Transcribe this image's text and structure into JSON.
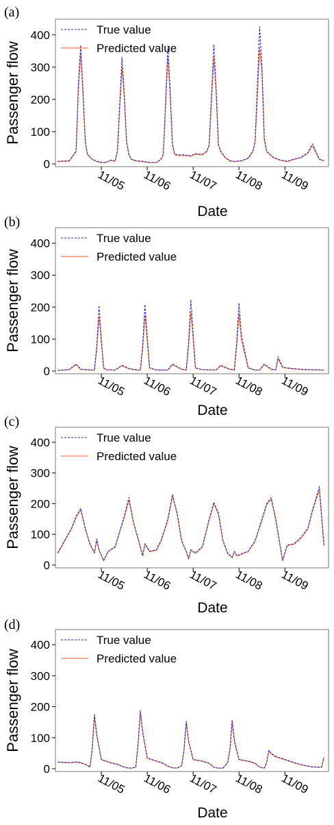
{
  "colors": {
    "true": "#2222dd",
    "predicted": "#f07850"
  },
  "chart_data": [
    {
      "panel": "(a)",
      "type": "line",
      "xlabel": "Date",
      "ylabel": "Passenger flow",
      "ylim": [
        0,
        440
      ],
      "yticks": [
        0,
        100,
        200,
        300,
        400
      ],
      "grid": false,
      "legend_position": "top-left",
      "xticks": [
        {
          "x": 1.0,
          "label": "11/05"
        },
        {
          "x": 2.0,
          "label": "11/06"
        },
        {
          "x": 3.0,
          "label": "11/07"
        },
        {
          "x": 4.0,
          "label": "11/08"
        },
        {
          "x": 5.0,
          "label": "11/09"
        }
      ],
      "xlim": [
        0,
        5.95
      ],
      "series": [
        {
          "name": "True value",
          "style": "dashed",
          "x": [
            0.05,
            0.3,
            0.45,
            0.5,
            0.55,
            0.6,
            0.65,
            0.7,
            0.8,
            0.9,
            1.0,
            1.1,
            1.2,
            1.3,
            1.35,
            1.45,
            1.5,
            1.55,
            1.6,
            1.65,
            1.75,
            1.9,
            2.05,
            2.2,
            2.3,
            2.35,
            2.45,
            2.5,
            2.55,
            2.6,
            2.7,
            2.8,
            2.95,
            3.05,
            3.2,
            3.3,
            3.35,
            3.45,
            3.5,
            3.55,
            3.6,
            3.7,
            3.8,
            3.9,
            4.05,
            4.2,
            4.3,
            4.35,
            4.45,
            4.5,
            4.55,
            4.6,
            4.75,
            4.9,
            5.05,
            5.2,
            5.35,
            5.5,
            5.6,
            5.75,
            5.85
          ],
          "y": [
            8,
            10,
            40,
            250,
            368,
            230,
            70,
            30,
            15,
            8,
            5,
            4,
            12,
            8,
            40,
            330,
            220,
            70,
            30,
            15,
            10,
            8,
            5,
            4,
            15,
            30,
            365,
            230,
            60,
            30,
            28,
            28,
            25,
            32,
            30,
            40,
            60,
            370,
            240,
            60,
            40,
            20,
            10,
            8,
            10,
            18,
            40,
            70,
            425,
            300,
            80,
            40,
            20,
            12,
            8,
            15,
            20,
            35,
            62,
            15,
            10
          ]
        },
        {
          "name": "Predicted value",
          "style": "solid",
          "x": [
            0.05,
            0.3,
            0.45,
            0.5,
            0.55,
            0.6,
            0.65,
            0.7,
            0.8,
            0.9,
            1.0,
            1.1,
            1.2,
            1.3,
            1.35,
            1.45,
            1.5,
            1.55,
            1.6,
            1.65,
            1.75,
            1.9,
            2.05,
            2.2,
            2.3,
            2.35,
            2.45,
            2.5,
            2.55,
            2.6,
            2.7,
            2.8,
            2.95,
            3.05,
            3.2,
            3.3,
            3.35,
            3.45,
            3.5,
            3.55,
            3.6,
            3.7,
            3.8,
            3.9,
            4.05,
            4.2,
            4.3,
            4.35,
            4.45,
            4.5,
            4.55,
            4.6,
            4.75,
            4.9,
            5.05,
            5.2,
            5.35,
            5.5,
            5.6,
            5.75,
            5.85
          ],
          "y": [
            7,
            9,
            38,
            230,
            345,
            215,
            68,
            28,
            14,
            7,
            4,
            4,
            11,
            8,
            38,
            300,
            205,
            68,
            28,
            14,
            9,
            7,
            4,
            4,
            14,
            28,
            335,
            215,
            58,
            28,
            26,
            26,
            24,
            30,
            28,
            38,
            58,
            330,
            225,
            58,
            38,
            19,
            9,
            7,
            9,
            17,
            38,
            66,
            360,
            280,
            76,
            38,
            19,
            11,
            7,
            14,
            19,
            33,
            56,
            14,
            9
          ]
        }
      ]
    },
    {
      "panel": "(b)",
      "type": "line",
      "xlabel": "Date",
      "ylabel": "Passenger flow",
      "ylim": [
        0,
        440
      ],
      "yticks": [
        0,
        100,
        200,
        300,
        400
      ],
      "grid": false,
      "legend_position": "top-left",
      "xticks": [
        {
          "x": 1.0,
          "label": "11/05"
        },
        {
          "x": 2.0,
          "label": "11/06"
        },
        {
          "x": 3.0,
          "label": "11/07"
        },
        {
          "x": 4.0,
          "label": "11/08"
        },
        {
          "x": 5.0,
          "label": "11/09"
        }
      ],
      "xlim": [
        0,
        5.95
      ],
      "series": [
        {
          "name": "True value",
          "style": "dashed",
          "x": [
            0.05,
            0.3,
            0.45,
            0.55,
            0.7,
            0.85,
            0.9,
            0.95,
            1.0,
            1.05,
            1.1,
            1.3,
            1.45,
            1.6,
            1.75,
            1.85,
            1.9,
            1.95,
            2.0,
            2.05,
            2.2,
            2.45,
            2.55,
            2.75,
            2.85,
            2.9,
            2.95,
            3.0,
            3.05,
            3.2,
            3.5,
            3.6,
            3.8,
            3.9,
            3.95,
            4.0,
            4.05,
            4.2,
            4.35,
            4.45,
            4.55,
            4.7,
            4.8,
            4.85,
            4.95,
            5.15,
            5.4,
            5.85
          ],
          "y": [
            2,
            5,
            22,
            6,
            4,
            3,
            80,
            205,
            100,
            10,
            4,
            3,
            18,
            8,
            4,
            3,
            80,
            208,
            110,
            10,
            3,
            3,
            22,
            6,
            3,
            90,
            223,
            120,
            10,
            4,
            3,
            18,
            6,
            4,
            95,
            213,
            115,
            10,
            3,
            3,
            22,
            6,
            4,
            45,
            12,
            8,
            5,
            3
          ]
        },
        {
          "name": "Predicted value",
          "style": "solid",
          "x": [
            0.05,
            0.3,
            0.45,
            0.55,
            0.7,
            0.85,
            0.9,
            0.95,
            1.0,
            1.05,
            1.1,
            1.3,
            1.45,
            1.6,
            1.75,
            1.85,
            1.9,
            1.95,
            2.0,
            2.05,
            2.2,
            2.45,
            2.55,
            2.75,
            2.85,
            2.9,
            2.95,
            3.0,
            3.05,
            3.2,
            3.5,
            3.6,
            3.8,
            3.9,
            3.95,
            4.0,
            4.05,
            4.2,
            4.35,
            4.45,
            4.55,
            4.7,
            4.8,
            4.85,
            4.95,
            5.15,
            5.4,
            5.85
          ],
          "y": [
            2,
            4,
            20,
            5,
            3,
            3,
            70,
            170,
            90,
            9,
            4,
            3,
            16,
            7,
            3,
            3,
            70,
            175,
            95,
            9,
            3,
            3,
            20,
            5,
            3,
            78,
            185,
            100,
            9,
            4,
            3,
            16,
            5,
            3,
            82,
            180,
            98,
            9,
            3,
            3,
            20,
            5,
            3,
            38,
            11,
            7,
            4,
            3
          ]
        }
      ]
    },
    {
      "panel": "(c)",
      "type": "line",
      "xlabel": "Date",
      "ylabel": "Passenger flow",
      "ylim": [
        0,
        440
      ],
      "yticks": [
        0,
        100,
        200,
        300,
        400
      ],
      "grid": false,
      "legend_position": "top-left",
      "xticks": [
        {
          "x": 1.0,
          "label": "11/05"
        },
        {
          "x": 2.0,
          "label": "11/06"
        },
        {
          "x": 3.0,
          "label": "11/07"
        },
        {
          "x": 4.0,
          "label": "11/08"
        },
        {
          "x": 5.0,
          "label": "11/09"
        }
      ],
      "xlim": [
        0,
        5.95
      ],
      "series": [
        {
          "name": "True value",
          "style": "dashed",
          "x": [
            0.05,
            0.2,
            0.35,
            0.45,
            0.55,
            0.65,
            0.75,
            0.85,
            0.9,
            0.95,
            1.05,
            1.15,
            1.3,
            1.4,
            1.5,
            1.6,
            1.7,
            1.85,
            1.9,
            1.95,
            2.05,
            2.2,
            2.3,
            2.45,
            2.55,
            2.65,
            2.75,
            2.85,
            2.9,
            2.95,
            3.05,
            3.2,
            3.35,
            3.45,
            3.55,
            3.65,
            3.75,
            3.85,
            3.9,
            3.95,
            4.1,
            4.2,
            4.35,
            4.5,
            4.6,
            4.7,
            4.8,
            4.9,
            4.95,
            5.05,
            5.2,
            5.35,
            5.5,
            5.6,
            5.75,
            5.85
          ],
          "y": [
            40,
            80,
            120,
            160,
            185,
            120,
            70,
            40,
            85,
            50,
            15,
            45,
            60,
            110,
            160,
            220,
            140,
            60,
            30,
            70,
            45,
            50,
            80,
            150,
            230,
            170,
            80,
            45,
            20,
            50,
            40,
            60,
            150,
            205,
            170,
            80,
            40,
            25,
            45,
            30,
            40,
            45,
            80,
            150,
            200,
            220,
            150,
            60,
            15,
            65,
            70,
            90,
            120,
            180,
            255,
            65
          ]
        },
        {
          "name": "Predicted value",
          "style": "solid",
          "x": [
            0.05,
            0.2,
            0.35,
            0.45,
            0.55,
            0.65,
            0.75,
            0.85,
            0.9,
            0.95,
            1.05,
            1.15,
            1.3,
            1.4,
            1.5,
            1.6,
            1.7,
            1.85,
            1.9,
            1.95,
            2.05,
            2.2,
            2.3,
            2.45,
            2.55,
            2.65,
            2.75,
            2.85,
            2.9,
            2.95,
            3.05,
            3.2,
            3.35,
            3.45,
            3.55,
            3.65,
            3.75,
            3.85,
            3.9,
            3.95,
            4.1,
            4.2,
            4.35,
            4.5,
            4.6,
            4.7,
            4.8,
            4.9,
            4.95,
            5.05,
            5.2,
            5.35,
            5.5,
            5.6,
            5.75,
            5.85
          ],
          "y": [
            38,
            78,
            118,
            155,
            180,
            118,
            68,
            40,
            82,
            48,
            14,
            44,
            58,
            108,
            155,
            212,
            138,
            58,
            30,
            68,
            44,
            48,
            78,
            146,
            225,
            168,
            78,
            44,
            20,
            48,
            38,
            58,
            146,
            200,
            166,
            78,
            38,
            24,
            44,
            30,
            38,
            44,
            78,
            146,
            196,
            215,
            148,
            58,
            15,
            63,
            68,
            88,
            118,
            176,
            245,
            64
          ]
        }
      ]
    },
    {
      "panel": "(d)",
      "type": "line",
      "xlabel": "Date",
      "ylabel": "Passenger flow",
      "ylim": [
        0,
        440
      ],
      "yticks": [
        0,
        100,
        200,
        300,
        400
      ],
      "grid": false,
      "legend_position": "top-left",
      "xticks": [
        {
          "x": 1.0,
          "label": "11/05"
        },
        {
          "x": 2.0,
          "label": "11/06"
        },
        {
          "x": 3.0,
          "label": "11/07"
        },
        {
          "x": 4.0,
          "label": "11/08"
        },
        {
          "x": 5.0,
          "label": "11/09"
        }
      ],
      "xlim": [
        0,
        5.95
      ],
      "series": [
        {
          "name": "True value",
          "style": "dashed",
          "x": [
            0.05,
            0.3,
            0.45,
            0.55,
            0.65,
            0.75,
            0.8,
            0.85,
            0.9,
            1.0,
            1.2,
            1.35,
            1.45,
            1.55,
            1.65,
            1.75,
            1.8,
            1.85,
            1.9,
            2.0,
            2.2,
            2.35,
            2.45,
            2.55,
            2.65,
            2.75,
            2.8,
            2.85,
            2.9,
            3.0,
            3.2,
            3.35,
            3.45,
            3.55,
            3.65,
            3.75,
            3.8,
            3.85,
            3.9,
            4.0,
            4.2,
            4.35,
            4.45,
            4.55,
            4.6,
            4.65,
            4.7,
            4.8,
            5.0,
            5.2,
            5.4,
            5.6,
            5.8,
            5.85
          ],
          "y": [
            22,
            20,
            22,
            20,
            15,
            5,
            60,
            175,
            110,
            30,
            20,
            15,
            8,
            3,
            2,
            5,
            80,
            188,
            120,
            35,
            25,
            18,
            8,
            3,
            2,
            10,
            60,
            153,
            90,
            30,
            25,
            18,
            5,
            2,
            2,
            20,
            60,
            156,
            90,
            30,
            25,
            18,
            5,
            2,
            20,
            60,
            50,
            40,
            30,
            20,
            12,
            6,
            5,
            38
          ]
        },
        {
          "name": "Predicted value",
          "style": "solid",
          "x": [
            0.05,
            0.3,
            0.45,
            0.55,
            0.65,
            0.75,
            0.8,
            0.85,
            0.9,
            1.0,
            1.2,
            1.35,
            1.45,
            1.55,
            1.65,
            1.75,
            1.8,
            1.85,
            1.9,
            2.0,
            2.2,
            2.35,
            2.45,
            2.55,
            2.65,
            2.75,
            2.8,
            2.85,
            2.9,
            3.0,
            3.2,
            3.35,
            3.45,
            3.55,
            3.65,
            3.75,
            3.8,
            3.85,
            3.9,
            4.0,
            4.2,
            4.35,
            4.45,
            4.55,
            4.6,
            4.65,
            4.7,
            4.8,
            5.0,
            5.2,
            5.4,
            5.6,
            5.8,
            5.85
          ],
          "y": [
            21,
            19,
            21,
            19,
            14,
            5,
            58,
            170,
            108,
            29,
            19,
            14,
            8,
            3,
            2,
            5,
            78,
            182,
            118,
            34,
            24,
            17,
            8,
            3,
            2,
            10,
            58,
            150,
            88,
            29,
            24,
            17,
            5,
            2,
            2,
            19,
            58,
            152,
            88,
            29,
            24,
            17,
            5,
            2,
            19,
            58,
            48,
            38,
            29,
            19,
            11,
            6,
            5,
            36
          ]
        }
      ]
    }
  ]
}
